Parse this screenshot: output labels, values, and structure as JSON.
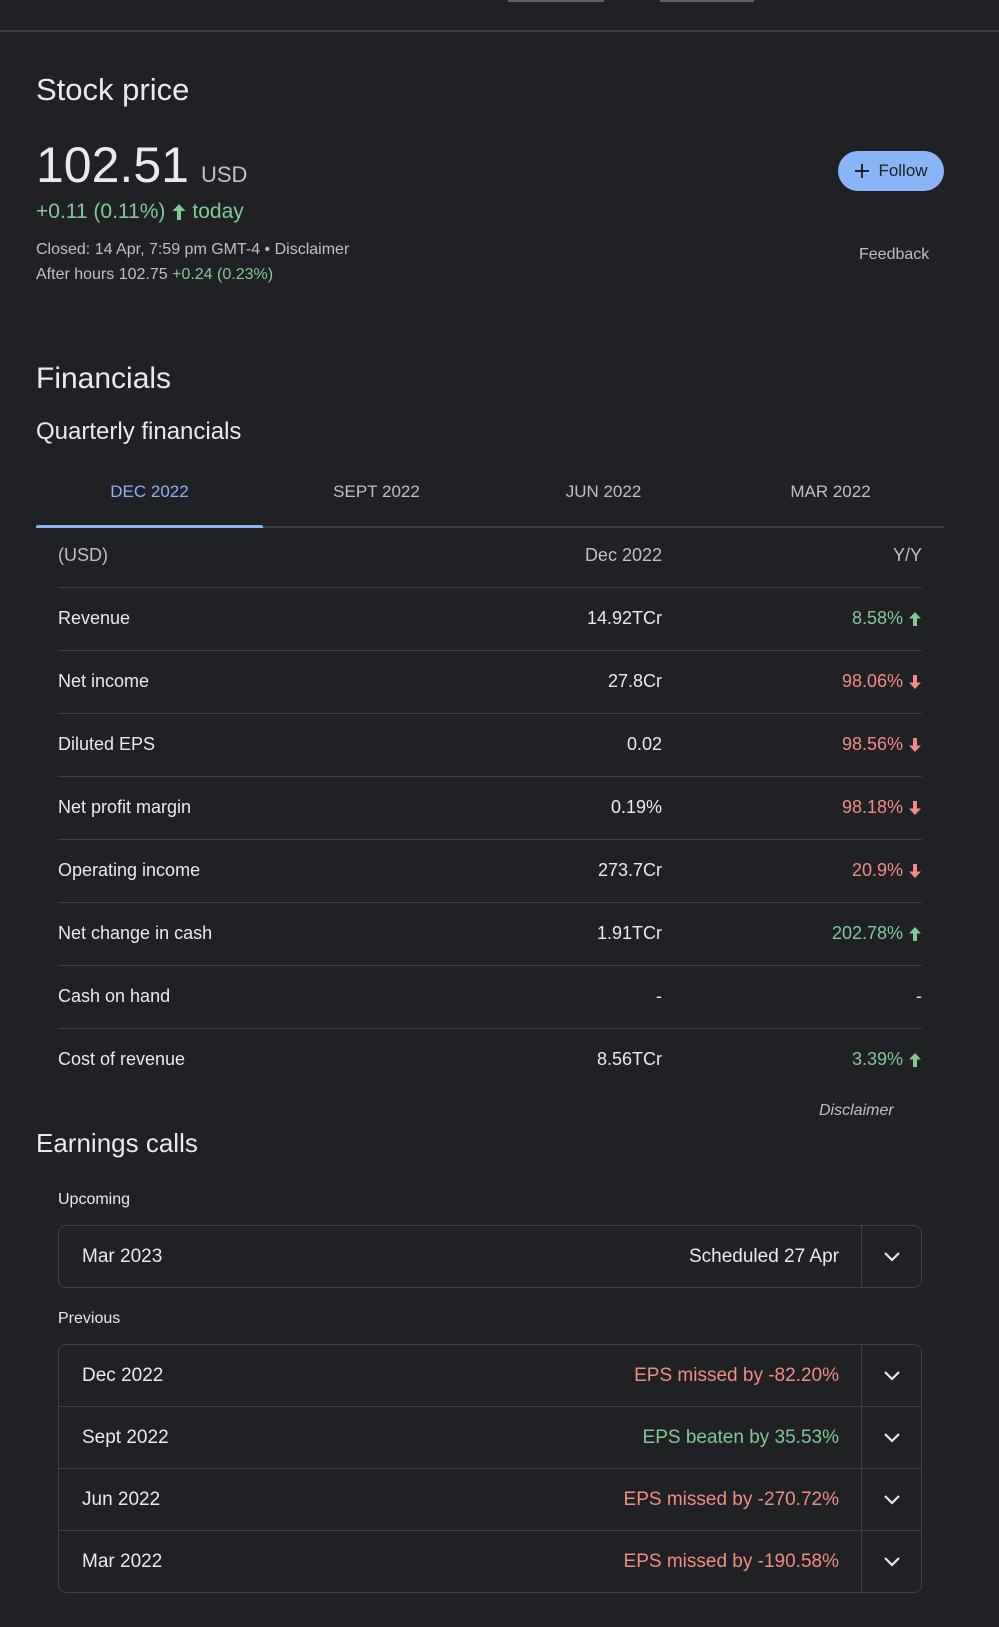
{
  "stock": {
    "title": "Stock price",
    "price": "102.51",
    "currency": "USD",
    "change": "+0.11 (0.11%)",
    "change_period": "today",
    "closed_text": "Closed: 14 Apr, 7:59 pm GMT-4 • Disclaimer",
    "after_hours_label": "After hours 102.75",
    "after_hours_change": "+0.24 (0.23%)",
    "follow_label": "Follow",
    "feedback_label": "Feedback"
  },
  "financials": {
    "title": "Financials",
    "subtitle": "Quarterly financials",
    "tabs": [
      "DEC 2022",
      "SEPT 2022",
      "JUN 2022",
      "MAR 2022"
    ],
    "active_tab": 0,
    "header": {
      "label": "(USD)",
      "value": "Dec 2022",
      "yy": "Y/Y"
    },
    "rows": [
      {
        "label": "Revenue",
        "value": "14.92TCr",
        "yy": "8.58%",
        "dir": "up"
      },
      {
        "label": "Net income",
        "value": "27.8Cr",
        "yy": "98.06%",
        "dir": "down"
      },
      {
        "label": "Diluted EPS",
        "value": "0.02",
        "yy": "98.56%",
        "dir": "down"
      },
      {
        "label": "Net profit margin",
        "value": "0.19%",
        "yy": "98.18%",
        "dir": "down"
      },
      {
        "label": "Operating income",
        "value": "273.7Cr",
        "yy": "20.9%",
        "dir": "down"
      },
      {
        "label": "Net change in cash",
        "value": "1.91TCr",
        "yy": "202.78%",
        "dir": "up"
      },
      {
        "label": "Cash on hand",
        "value": "-",
        "yy": "-",
        "dir": "none"
      },
      {
        "label": "Cost of revenue",
        "value": "8.56TCr",
        "yy": "3.39%",
        "dir": "up"
      }
    ],
    "disclaimer": "Disclaimer"
  },
  "earnings": {
    "title": "Earnings calls",
    "upcoming_label": "Upcoming",
    "upcoming": [
      {
        "quarter": "Mar 2023",
        "status": "Scheduled 27 Apr",
        "tone": "neutral"
      }
    ],
    "previous_label": "Previous",
    "previous": [
      {
        "quarter": "Dec 2022",
        "status": "EPS missed by -82.20%",
        "tone": "red"
      },
      {
        "quarter": "Sept 2022",
        "status": "EPS beaten by 35.53%",
        "tone": "green"
      },
      {
        "quarter": "Jun 2022",
        "status": "EPS missed by -270.72%",
        "tone": "red"
      },
      {
        "quarter": "Mar 2022",
        "status": "EPS missed by -190.58%",
        "tone": "red"
      }
    ]
  },
  "colors": {
    "positive": "#81c995",
    "negative": "#f28b82",
    "accent": "#8ab4f8",
    "background": "#202124"
  }
}
